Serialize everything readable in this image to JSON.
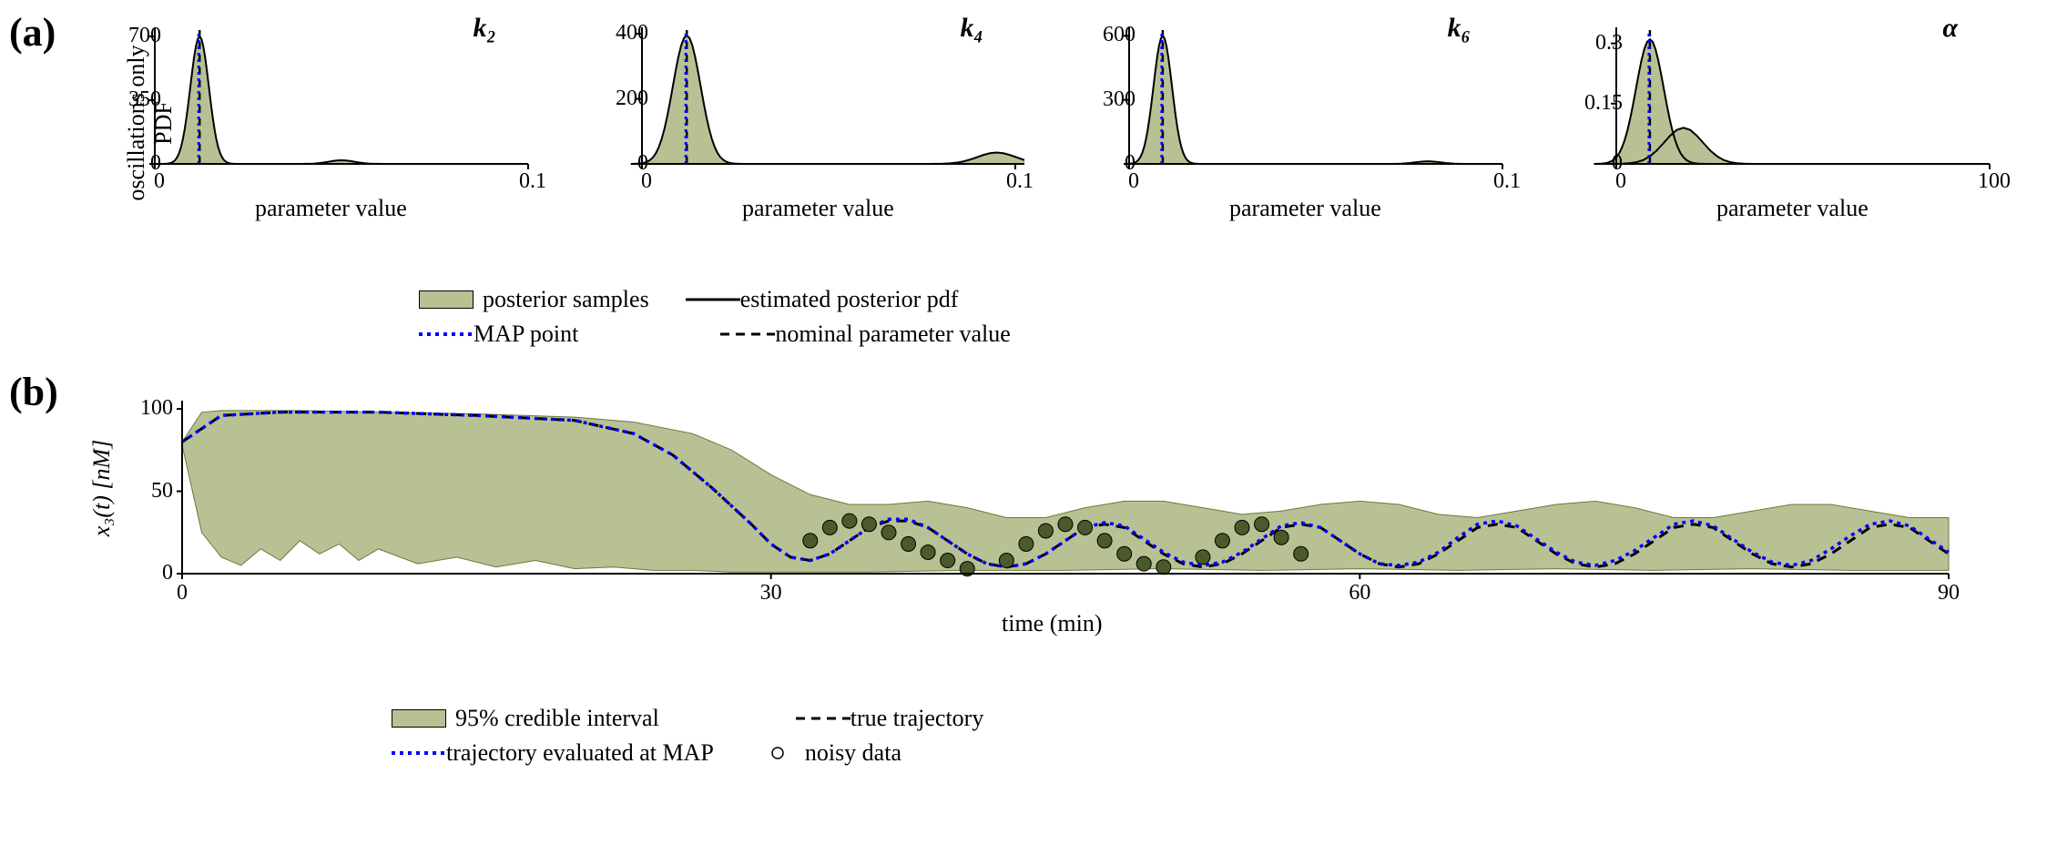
{
  "colors": {
    "fill": "#b8c194",
    "fill_stroke": "#6b7a3a",
    "line_black": "#000000",
    "line_blue": "#0000ff",
    "marker": "#4a5a2a",
    "bg": "#ffffff"
  },
  "panel_a": {
    "label": "(a)",
    "ylabel_line1": "oscillations only",
    "ylabel_line2": "PDF",
    "xlabel": "parameter value",
    "subplots": [
      {
        "title": "k₂",
        "xlim": [
          0,
          0.1
        ],
        "xticks": [
          0,
          0.1
        ],
        "ylim": [
          0,
          750
        ],
        "yticks": [
          0,
          350,
          700
        ],
        "peak_x": 0.012,
        "peak_h": 700,
        "peak_w": 0.004,
        "bump_x": 0.05,
        "bump_h": 20,
        "nominal_x": 0.012
      },
      {
        "title": "k₄",
        "xlim": [
          0,
          0.1
        ],
        "xticks": [
          0,
          0.1
        ],
        "ylim": [
          0,
          420
        ],
        "yticks": [
          0,
          200,
          400
        ],
        "peak_x": 0.012,
        "peak_h": 395,
        "peak_w": 0.006,
        "bump_x": 0.095,
        "bump_h": 35,
        "nominal_x": 0.012
      },
      {
        "title": "k₆",
        "xlim": [
          0,
          0.1
        ],
        "xticks": [
          0,
          0.1
        ],
        "ylim": [
          0,
          640
        ],
        "yticks": [
          0,
          300,
          600
        ],
        "peak_x": 0.009,
        "peak_h": 600,
        "peak_w": 0.004,
        "bump_x": 0.08,
        "bump_h": 12,
        "nominal_x": 0.009
      },
      {
        "title": "α",
        "xlim": [
          0,
          100
        ],
        "xticks": [
          0,
          100
        ],
        "ylim": [
          0,
          0.34
        ],
        "yticks": [
          0,
          0.15,
          0.3
        ],
        "peak_x": 9,
        "peak_h": 0.31,
        "peak_w": 6,
        "bump_x": 18,
        "bump_h": 0.09,
        "nominal_x": 9
      }
    ]
  },
  "legend_a": {
    "items": [
      {
        "type": "fill",
        "label": "posterior samples"
      },
      {
        "type": "solid",
        "label": "estimated posterior pdf"
      },
      {
        "type": "dotted_blue",
        "label": "MAP point"
      },
      {
        "type": "dashed",
        "label": "nominal parameter value"
      }
    ]
  },
  "panel_b": {
    "label": "(b)",
    "xlabel": "time (min)",
    "ylabel": "x₃(t) [nM]",
    "xlim": [
      0,
      90
    ],
    "xticks": [
      0,
      30,
      60,
      90
    ],
    "ylim": [
      0,
      105
    ],
    "yticks": [
      0,
      50,
      100
    ],
    "ci_upper": [
      [
        0,
        80
      ],
      [
        1,
        98
      ],
      [
        2,
        99
      ],
      [
        3,
        99
      ],
      [
        4,
        99
      ],
      [
        6,
        99
      ],
      [
        10,
        98
      ],
      [
        15,
        97
      ],
      [
        20,
        95
      ],
      [
        23,
        92
      ],
      [
        26,
        85
      ],
      [
        28,
        75
      ],
      [
        30,
        60
      ],
      [
        32,
        48
      ],
      [
        34,
        42
      ],
      [
        36,
        42
      ],
      [
        38,
        44
      ],
      [
        40,
        40
      ],
      [
        42,
        34
      ],
      [
        44,
        34
      ],
      [
        46,
        40
      ],
      [
        48,
        44
      ],
      [
        50,
        44
      ],
      [
        52,
        40
      ],
      [
        54,
        36
      ],
      [
        56,
        38
      ],
      [
        58,
        42
      ],
      [
        60,
        44
      ],
      [
        62,
        42
      ],
      [
        64,
        36
      ],
      [
        66,
        34
      ],
      [
        68,
        38
      ],
      [
        70,
        42
      ],
      [
        72,
        44
      ],
      [
        74,
        40
      ],
      [
        76,
        34
      ],
      [
        78,
        34
      ],
      [
        80,
        38
      ],
      [
        82,
        42
      ],
      [
        84,
        42
      ],
      [
        86,
        38
      ],
      [
        88,
        34
      ],
      [
        90,
        34
      ]
    ],
    "ci_lower": [
      [
        0,
        78
      ],
      [
        1,
        25
      ],
      [
        2,
        10
      ],
      [
        3,
        5
      ],
      [
        4,
        15
      ],
      [
        5,
        8
      ],
      [
        6,
        20
      ],
      [
        7,
        12
      ],
      [
        8,
        18
      ],
      [
        9,
        8
      ],
      [
        10,
        15
      ],
      [
        12,
        6
      ],
      [
        14,
        10
      ],
      [
        16,
        4
      ],
      [
        18,
        8
      ],
      [
        20,
        3
      ],
      [
        22,
        4
      ],
      [
        24,
        2
      ],
      [
        26,
        2
      ],
      [
        28,
        1
      ],
      [
        30,
        1
      ],
      [
        35,
        1
      ],
      [
        40,
        2
      ],
      [
        45,
        2
      ],
      [
        50,
        3
      ],
      [
        55,
        2
      ],
      [
        60,
        3
      ],
      [
        65,
        2
      ],
      [
        70,
        3
      ],
      [
        75,
        2
      ],
      [
        80,
        3
      ],
      [
        85,
        2
      ],
      [
        90,
        2
      ]
    ],
    "true_traj": [
      [
        0,
        80
      ],
      [
        2,
        96
      ],
      [
        5,
        98
      ],
      [
        10,
        98
      ],
      [
        15,
        96
      ],
      [
        20,
        93
      ],
      [
        23,
        85
      ],
      [
        25,
        72
      ],
      [
        27,
        52
      ],
      [
        29,
        30
      ],
      [
        30,
        18
      ],
      [
        31,
        10
      ],
      [
        32,
        8
      ],
      [
        33,
        12
      ],
      [
        34,
        20
      ],
      [
        35,
        28
      ],
      [
        36,
        32
      ],
      [
        37,
        32
      ],
      [
        38,
        28
      ],
      [
        39,
        20
      ],
      [
        40,
        12
      ],
      [
        41,
        6
      ],
      [
        42,
        4
      ],
      [
        43,
        6
      ],
      [
        44,
        12
      ],
      [
        45,
        20
      ],
      [
        46,
        28
      ],
      [
        47,
        30
      ],
      [
        48,
        28
      ],
      [
        49,
        20
      ],
      [
        50,
        12
      ],
      [
        51,
        6
      ],
      [
        52,
        4
      ],
      [
        53,
        6
      ],
      [
        54,
        12
      ],
      [
        55,
        20
      ],
      [
        56,
        28
      ],
      [
        57,
        30
      ],
      [
        58,
        28
      ],
      [
        59,
        20
      ],
      [
        60,
        12
      ],
      [
        61,
        6
      ],
      [
        62,
        4
      ],
      [
        63,
        6
      ],
      [
        64,
        12
      ],
      [
        65,
        20
      ],
      [
        66,
        28
      ],
      [
        67,
        30
      ],
      [
        68,
        28
      ],
      [
        69,
        20
      ],
      [
        70,
        12
      ],
      [
        71,
        6
      ],
      [
        72,
        4
      ],
      [
        73,
        6
      ],
      [
        74,
        12
      ],
      [
        75,
        20
      ],
      [
        76,
        28
      ],
      [
        77,
        30
      ],
      [
        78,
        28
      ],
      [
        79,
        20
      ],
      [
        80,
        12
      ],
      [
        81,
        6
      ],
      [
        82,
        4
      ],
      [
        83,
        6
      ],
      [
        84,
        12
      ],
      [
        85,
        20
      ],
      [
        86,
        28
      ],
      [
        87,
        30
      ],
      [
        88,
        28
      ],
      [
        89,
        20
      ],
      [
        90,
        12
      ]
    ],
    "map_traj": [
      [
        0,
        80
      ],
      [
        2,
        96
      ],
      [
        5,
        98
      ],
      [
        10,
        98
      ],
      [
        15,
        96
      ],
      [
        20,
        93
      ],
      [
        23,
        85
      ],
      [
        25,
        72
      ],
      [
        27,
        52
      ],
      [
        29,
        30
      ],
      [
        30,
        18
      ],
      [
        31,
        10
      ],
      [
        32,
        8
      ],
      [
        33,
        12
      ],
      [
        34,
        20
      ],
      [
        35,
        28
      ],
      [
        36,
        33
      ],
      [
        37,
        33
      ],
      [
        38,
        28
      ],
      [
        39,
        20
      ],
      [
        40,
        12
      ],
      [
        41,
        6
      ],
      [
        42,
        4
      ],
      [
        43,
        6
      ],
      [
        44,
        12
      ],
      [
        45,
        20
      ],
      [
        46,
        28
      ],
      [
        47,
        31
      ],
      [
        48,
        29
      ],
      [
        49,
        21
      ],
      [
        50,
        13
      ],
      [
        51,
        7
      ],
      [
        52,
        5
      ],
      [
        53,
        7
      ],
      [
        54,
        13
      ],
      [
        55,
        21
      ],
      [
        56,
        29
      ],
      [
        57,
        31
      ],
      [
        58,
        28
      ],
      [
        59,
        20
      ],
      [
        60,
        12
      ],
      [
        61,
        6
      ],
      [
        62,
        5
      ],
      [
        63,
        7
      ],
      [
        64,
        13
      ],
      [
        65,
        22
      ],
      [
        66,
        30
      ],
      [
        67,
        32
      ],
      [
        68,
        29
      ],
      [
        69,
        21
      ],
      [
        70,
        13
      ],
      [
        71,
        7
      ],
      [
        72,
        5
      ],
      [
        73,
        8
      ],
      [
        74,
        14
      ],
      [
        75,
        22
      ],
      [
        76,
        30
      ],
      [
        77,
        32
      ],
      [
        78,
        29
      ],
      [
        79,
        21
      ],
      [
        80,
        13
      ],
      [
        81,
        7
      ],
      [
        82,
        5
      ],
      [
        83,
        8
      ],
      [
        84,
        15
      ],
      [
        85,
        23
      ],
      [
        86,
        30
      ],
      [
        87,
        32
      ],
      [
        88,
        29
      ],
      [
        89,
        21
      ],
      [
        90,
        13
      ]
    ],
    "data_points": [
      [
        32,
        20
      ],
      [
        33,
        28
      ],
      [
        34,
        32
      ],
      [
        35,
        30
      ],
      [
        36,
        25
      ],
      [
        37,
        18
      ],
      [
        38,
        13
      ],
      [
        39,
        8
      ],
      [
        40,
        3
      ],
      [
        42,
        8
      ],
      [
        43,
        18
      ],
      [
        44,
        26
      ],
      [
        45,
        30
      ],
      [
        46,
        28
      ],
      [
        47,
        20
      ],
      [
        48,
        12
      ],
      [
        49,
        6
      ],
      [
        50,
        4
      ],
      [
        52,
        10
      ],
      [
        53,
        20
      ],
      [
        54,
        28
      ],
      [
        55,
        30
      ],
      [
        56,
        22
      ],
      [
        57,
        12
      ]
    ]
  },
  "legend_b": {
    "items": [
      {
        "type": "fill",
        "label": "95% credible interval"
      },
      {
        "type": "dashed",
        "label": "true trajectory"
      },
      {
        "type": "dotted_blue",
        "label": "trajectory evaluated at MAP"
      },
      {
        "type": "marker",
        "label": "noisy data"
      }
    ]
  }
}
